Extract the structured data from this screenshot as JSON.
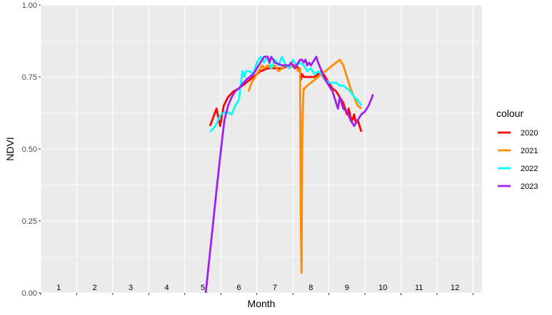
{
  "chart_data": {
    "type": "line",
    "title": "",
    "xlabel": "Month",
    "ylabel": "NDVI",
    "xlim": [
      0.5,
      12.75
    ],
    "ylim": [
      0,
      1
    ],
    "y_ticks": [
      "0.00",
      "0.25",
      "0.50",
      "0.75",
      "1.00"
    ],
    "y_tick_values": [
      0,
      0.25,
      0.5,
      0.75,
      1
    ],
    "x_ticks": [
      "1",
      "2",
      "3",
      "4",
      "5",
      "6",
      "7",
      "8",
      "9",
      "10",
      "11",
      "12"
    ],
    "grid": true,
    "background": "#ebebeb",
    "legend": {
      "title": "colour",
      "position": "right"
    },
    "series": [
      {
        "name": "2020",
        "color": "#ff0000",
        "x": [
          5.2,
          5.38,
          5.48,
          5.58,
          5.7,
          5.85,
          6.0,
          6.2,
          6.4,
          6.6,
          6.8,
          7.0,
          7.2,
          7.4,
          7.6,
          7.65,
          7.7,
          7.72,
          7.75,
          7.8,
          7.9,
          8.0,
          8.1,
          8.2,
          8.3,
          8.4,
          8.5,
          8.6,
          8.7,
          8.8,
          8.9,
          8.95,
          9.0,
          9.05,
          9.1,
          9.15,
          9.2,
          9.25,
          9.3,
          9.4
        ],
        "y": [
          0.58,
          0.64,
          0.58,
          0.65,
          0.68,
          0.7,
          0.71,
          0.73,
          0.75,
          0.77,
          0.78,
          0.78,
          0.78,
          0.79,
          0.79,
          0.78,
          0.77,
          0.74,
          0.76,
          0.75,
          0.75,
          0.75,
          0.75,
          0.76,
          0.77,
          0.75,
          0.73,
          0.71,
          0.7,
          0.68,
          0.66,
          0.64,
          0.62,
          0.64,
          0.61,
          0.6,
          0.62,
          0.59,
          0.6,
          0.56
        ]
      },
      {
        "name": "2021",
        "color": "#ff8c00",
        "x": [
          6.27,
          6.35,
          6.45,
          6.55,
          6.65,
          6.7,
          6.8,
          6.9,
          7.0,
          7.1,
          7.2,
          7.3,
          7.4,
          7.5,
          7.6,
          7.65,
          7.7,
          7.72,
          7.74,
          7.76,
          7.78,
          7.8,
          7.82,
          7.9,
          8.0,
          8.1,
          8.2,
          8.3,
          8.4,
          8.5,
          8.6,
          8.7,
          8.8,
          8.9,
          9.0,
          9.1,
          9.2,
          9.3,
          9.4
        ],
        "y": [
          0.7,
          0.73,
          0.75,
          0.77,
          0.79,
          0.78,
          0.79,
          0.78,
          0.79,
          0.77,
          0.78,
          0.79,
          0.78,
          0.79,
          0.78,
          0.77,
          0.78,
          0.25,
          0.07,
          0.55,
          0.66,
          0.71,
          0.71,
          0.72,
          0.73,
          0.74,
          0.75,
          0.76,
          0.77,
          0.78,
          0.79,
          0.8,
          0.81,
          0.79,
          0.75,
          0.71,
          0.68,
          0.65,
          0.64
        ]
      },
      {
        "name": "2022",
        "color": "#00ffff",
        "x": [
          5.2,
          5.35,
          5.5,
          5.65,
          5.8,
          5.9,
          6.0,
          6.05,
          6.1,
          6.15,
          6.2,
          6.3,
          6.4,
          6.5,
          6.6,
          6.7,
          6.8,
          6.9,
          7.0,
          7.1,
          7.2,
          7.3,
          7.4,
          7.5,
          7.6,
          7.7,
          7.8,
          7.9,
          8.0,
          8.1,
          8.2,
          8.3,
          8.4,
          8.5,
          8.6,
          8.7,
          8.8,
          8.9,
          9.0,
          9.1,
          9.2,
          9.3,
          9.4
        ],
        "y": [
          0.56,
          0.58,
          0.62,
          0.63,
          0.62,
          0.65,
          0.67,
          0.72,
          0.77,
          0.75,
          0.77,
          0.77,
          0.76,
          0.8,
          0.82,
          0.8,
          0.82,
          0.78,
          0.81,
          0.79,
          0.82,
          0.79,
          0.78,
          0.81,
          0.79,
          0.8,
          0.79,
          0.77,
          0.78,
          0.76,
          0.77,
          0.76,
          0.74,
          0.73,
          0.73,
          0.73,
          0.72,
          0.72,
          0.71,
          0.7,
          0.68,
          0.67,
          0.65
        ]
      },
      {
        "name": "2023",
        "color": "#a020f0",
        "x": [
          5.08,
          5.25,
          5.4,
          5.55,
          5.6,
          5.7,
          5.8,
          5.9,
          6.0,
          6.2,
          6.4,
          6.5,
          6.6,
          6.7,
          6.8,
          6.85,
          6.9,
          7.0,
          7.2,
          7.4,
          7.45,
          7.5,
          7.55,
          7.6,
          7.65,
          7.7,
          7.75,
          7.8,
          7.85,
          7.9,
          7.95,
          8.0,
          8.1,
          8.15,
          8.2,
          8.3,
          8.35,
          8.4,
          8.45,
          8.5,
          8.55,
          8.6,
          8.65,
          8.7,
          8.75,
          8.8,
          8.9,
          9.0,
          9.1,
          9.2,
          9.3,
          9.4,
          9.5,
          9.6,
          9.7,
          9.72
        ],
        "y": [
          0.0,
          0.2,
          0.38,
          0.55,
          0.6,
          0.65,
          0.68,
          0.7,
          0.71,
          0.74,
          0.76,
          0.78,
          0.8,
          0.82,
          0.82,
          0.8,
          0.82,
          0.8,
          0.79,
          0.79,
          0.8,
          0.79,
          0.78,
          0.79,
          0.8,
          0.81,
          0.81,
          0.8,
          0.81,
          0.79,
          0.8,
          0.79,
          0.81,
          0.82,
          0.8,
          0.77,
          0.75,
          0.74,
          0.73,
          0.72,
          0.71,
          0.7,
          0.68,
          0.66,
          0.64,
          0.68,
          0.64,
          0.63,
          0.6,
          0.58,
          0.6,
          0.62,
          0.63,
          0.65,
          0.68,
          0.69
        ]
      }
    ]
  }
}
